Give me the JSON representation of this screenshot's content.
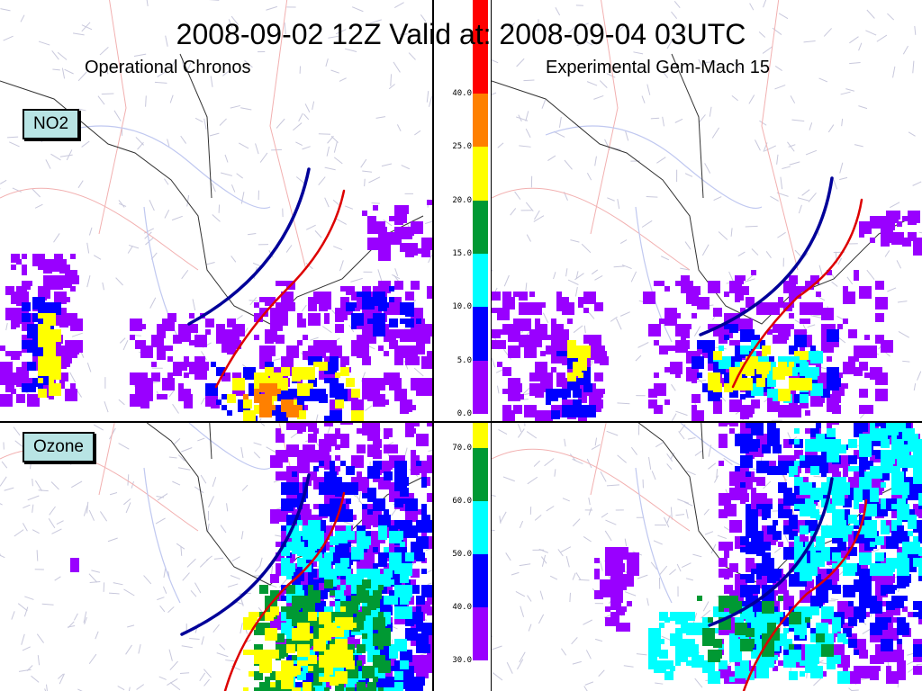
{
  "title": "2008-09-02 12Z Valid at:  2008-09-04 03UTC",
  "left_model": "Operational Chronos",
  "right_model": "Experimental Gem-Mach 15",
  "no2_label": "NO2",
  "ozone_label": "Ozone",
  "colors": {
    "purple": "#9900ff",
    "blue": "#0000ff",
    "cyan": "#00ffff",
    "green": "#009933",
    "yellow": "#ffff00",
    "orange": "#ff8000",
    "red": "#ff0000",
    "front_blue": "#000099",
    "front_red": "#dd0000"
  },
  "no2_scale": {
    "ticks": [
      "40.0",
      "25.0",
      "20.0",
      "15.0",
      "10.0",
      "5.0",
      "0.0"
    ],
    "bins": [
      "red",
      "orange",
      "yellow",
      "green",
      "cyan",
      "blue",
      "purple"
    ]
  },
  "ozone_scale": {
    "ticks": [
      "70.0",
      "60.0",
      "50.0",
      "40.0",
      "30.0"
    ],
    "bins": [
      "yellow",
      "green",
      "cyan",
      "blue",
      "purple"
    ]
  }
}
